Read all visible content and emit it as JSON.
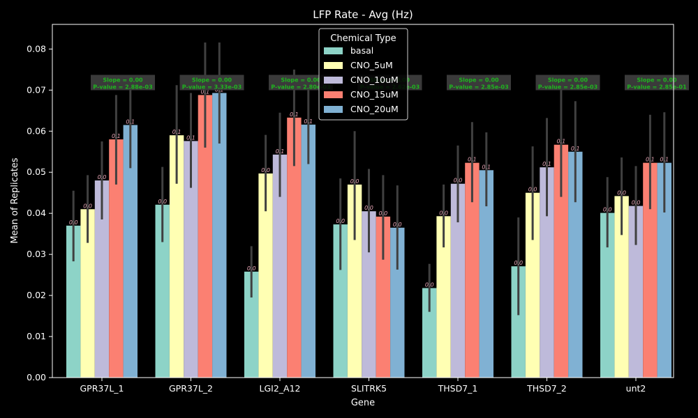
{
  "chart_data": {
    "type": "bar",
    "title": "LFP Rate - Avg (Hz)",
    "xlabel": "Gene",
    "ylabel": "Mean of Replicates",
    "ylim": [
      0,
      0.086
    ],
    "yticks": [
      "0.00",
      "0.01",
      "0.02",
      "0.03",
      "0.04",
      "0.05",
      "0.06",
      "0.07",
      "0.08"
    ],
    "ytick_values": [
      0,
      0.01,
      0.02,
      0.03,
      0.04,
      0.05,
      0.06,
      0.07,
      0.08
    ],
    "categories": [
      "GPR37L_1",
      "GPR37L_2",
      "LGI2_A12",
      "SLITRK5",
      "THSD7_1",
      "THSD7_2",
      "unt2"
    ],
    "legend": {
      "title": "Chemical Type",
      "position": "top-center"
    },
    "series": [
      {
        "name": "basal",
        "color": "#8dd3c7",
        "values": [
          0.037,
          0.0421,
          0.0258,
          0.0373,
          0.0218,
          0.0271,
          0.0401
        ],
        "err_low": [
          0.0283,
          0.033,
          0.0195,
          0.0262,
          0.016,
          0.0152,
          0.0317
        ],
        "err_high": [
          0.0455,
          0.0513,
          0.032,
          0.0485,
          0.0277,
          0.039,
          0.0488
        ]
      },
      {
        "name": "CNO_5uM",
        "color": "#ffffb3",
        "values": [
          0.041,
          0.059,
          0.0497,
          0.047,
          0.0393,
          0.045,
          0.0442
        ],
        "err_low": [
          0.0328,
          0.0472,
          0.0405,
          0.0335,
          0.0317,
          0.0335,
          0.0347
        ],
        "err_high": [
          0.0493,
          0.0712,
          0.0591,
          0.06,
          0.047,
          0.0563,
          0.0536
        ]
      },
      {
        "name": "CNO_10uM",
        "color": "#bebada",
        "values": [
          0.048,
          0.0576,
          0.0543,
          0.0405,
          0.0472,
          0.0512,
          0.0418
        ],
        "err_low": [
          0.0385,
          0.0462,
          0.044,
          0.0305,
          0.0378,
          0.0393,
          0.0323
        ],
        "err_high": [
          0.0575,
          0.0693,
          0.0645,
          0.0508,
          0.0565,
          0.0632,
          0.0515
        ]
      },
      {
        "name": "CNO_15uM",
        "color": "#fb8072",
        "values": [
          0.058,
          0.0688,
          0.0633,
          0.0392,
          0.0523,
          0.0567,
          0.0523
        ],
        "err_low": [
          0.047,
          0.056,
          0.0515,
          0.0287,
          0.0427,
          0.044,
          0.041
        ],
        "err_high": [
          0.0688,
          0.0816,
          0.075,
          0.0493,
          0.0622,
          0.07,
          0.064
        ]
      },
      {
        "name": "CNO_20uM",
        "color": "#80b1d3",
        "values": [
          0.0615,
          0.0693,
          0.0616,
          0.0365,
          0.0505,
          0.055,
          0.0523
        ],
        "err_low": [
          0.051,
          0.057,
          0.052,
          0.0263,
          0.0417,
          0.0427,
          0.0402
        ],
        "err_high": [
          0.072,
          0.0816,
          0.0717,
          0.0468,
          0.0597,
          0.0673,
          0.0646
        ]
      }
    ],
    "data_labels": [
      [
        "0.0",
        "0.0",
        "0.0",
        "0.1",
        "0.1"
      ],
      [
        "0.0",
        "0.1",
        "0.1",
        "0.1",
        "0.1"
      ],
      [
        "0.0",
        "0.0",
        "0.1",
        "0.1",
        "0.1"
      ],
      [
        "0.0",
        "0.0",
        "0.0",
        "0.0",
        "0.0"
      ],
      [
        "0.0",
        "0.0",
        "0.0",
        "0.1",
        "0.1"
      ],
      [
        "0.0",
        "0.0",
        "0.1",
        "0.1",
        "0.1"
      ],
      [
        "0.0",
        "0.0",
        "0.0",
        "0.1",
        "0.1"
      ]
    ],
    "annotations": [
      {
        "line1": "Slope = 0.00",
        "line2": "P-value = 2.88e-03"
      },
      {
        "line1": "Slope = 0.00",
        "line2": "P-value = 3.33e-03"
      },
      {
        "line1": "Slope = 0.00",
        "line2": "P-value = 2.80e-03"
      },
      {
        "line1": "Slope = 0.00",
        "line2": "P-value = 2.62e-03"
      },
      {
        "line1": "Slope = 0.00",
        "line2": "P-value = 2.85e-03"
      },
      {
        "line1": "Slope = 0.00",
        "line2": "P-value = 2.85e-03"
      },
      {
        "line1": "Slope = 0.00",
        "line2": "P-value = 2.85e-01"
      }
    ],
    "annotation_y": 0.0715,
    "colors": {
      "background": "#000000",
      "axes": "#ffffff",
      "errorbar": "#404040",
      "annotation_box": "#3a3a3a",
      "annotation_text": "#1fb51f",
      "data_label": "#e7a6b6"
    }
  }
}
